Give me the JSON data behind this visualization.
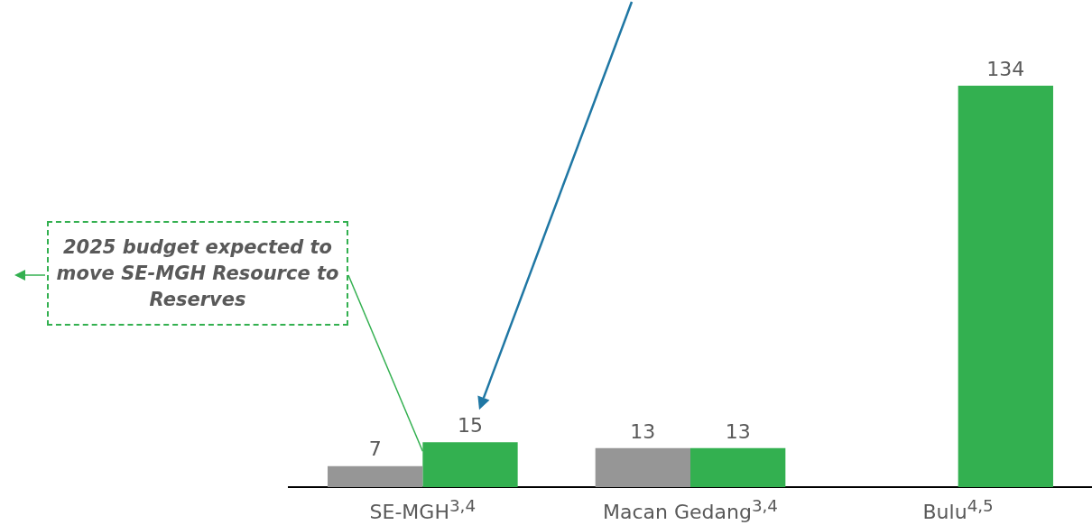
{
  "chart_data": {
    "type": "bar",
    "categories": [
      "SE-MGH$^{3,4}$",
      "Macan Gedang$^{3,4}$",
      "Bulu$^{4,5}$"
    ],
    "series": [
      {
        "color": "#969696",
        "values": [
          7,
          13,
          null
        ]
      },
      {
        "color": "#33b050",
        "values": [
          15,
          13,
          134
        ]
      }
    ],
    "data_labels": true,
    "tick_labels": "x",
    "grid": false,
    "legend": false,
    "annotations": [
      "2025 budget expected to move SE-MGH Resource to Reserves"
    ]
  }
}
